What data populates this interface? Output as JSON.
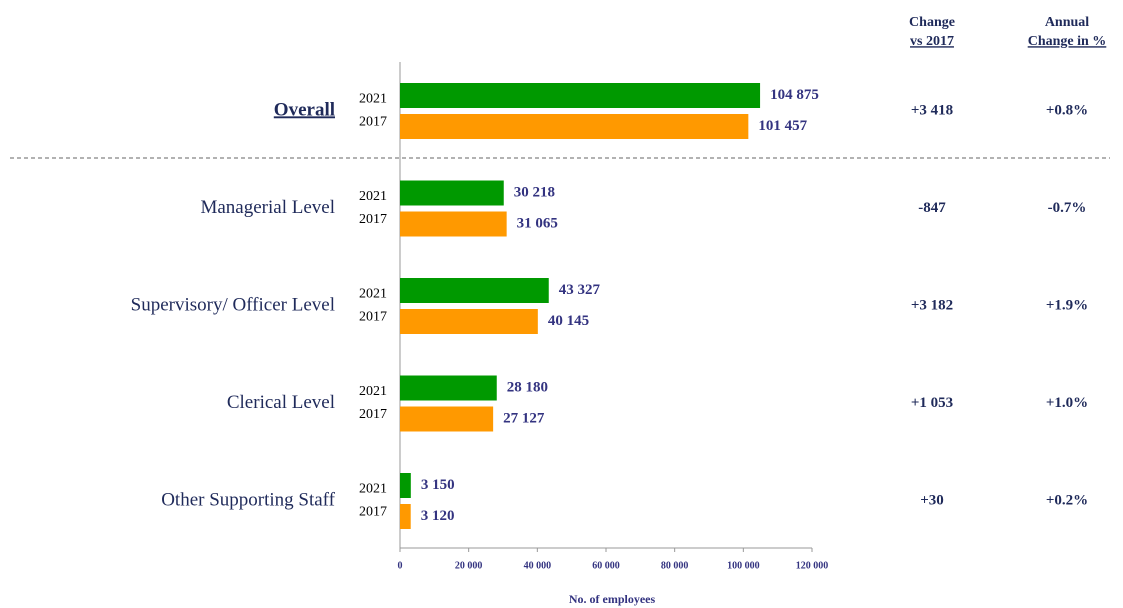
{
  "chart_data": {
    "type": "bar",
    "orientation": "horizontal",
    "categories": [
      "Overall",
      "Managerial Level",
      "Supervisory/ Officer Level",
      "Clerical Level",
      "Other Supporting Staff"
    ],
    "series": [
      {
        "name": "2021",
        "color": "#009900",
        "values": [
          104875,
          30218,
          43327,
          28180,
          3150
        ],
        "value_labels": [
          "104 875",
          "30 218",
          "43 327",
          "28 180",
          "3 150"
        ]
      },
      {
        "name": "2017",
        "color": "#ff9900",
        "values": [
          101457,
          31065,
          40145,
          27127,
          3120
        ],
        "value_labels": [
          "101 457",
          "31 065",
          "40 145",
          "27 127",
          "3 120"
        ]
      }
    ],
    "xlim": [
      0,
      120000
    ],
    "xticks": [
      0,
      {
        "value": 20000,
        "label": "20 000"
      },
      {
        "value": 40000,
        "label": "40 000"
      },
      {
        "value": 60000,
        "label": "60 000"
      },
      {
        "value": 80000,
        "label": "80 000"
      },
      {
        "value": 100000,
        "label": "100 000"
      },
      {
        "value": 120000,
        "label": "120 000"
      }
    ],
    "xlabel": "No. of employees",
    "columns": [
      {
        "header": [
          "Change",
          "vs 2017"
        ],
        "values": [
          "+3 418",
          "-847",
          "+3 182",
          "+1 053",
          "+30"
        ]
      },
      {
        "header": [
          "Annual",
          "Change in %"
        ],
        "values": [
          "+0.8%",
          "-0.7%",
          "+1.9%",
          "+1.0%",
          "+0.2%"
        ]
      }
    ]
  }
}
